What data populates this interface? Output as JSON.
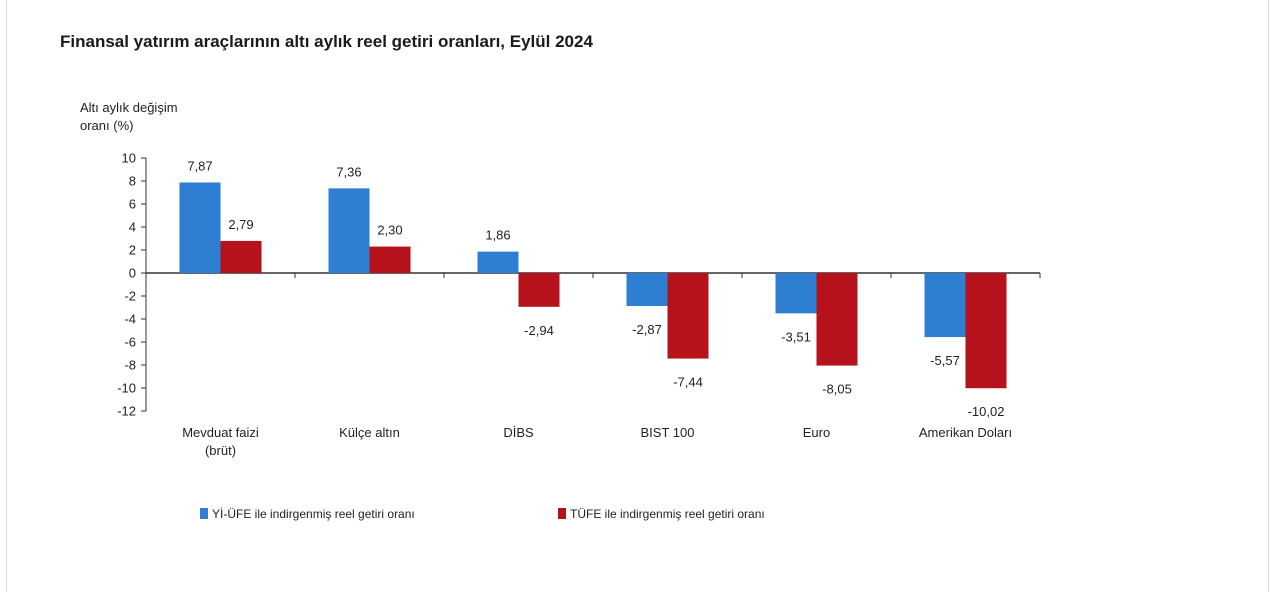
{
  "title": "Finansal yatırım araçlarının altı aylık reel getiri oranları, Eylül 2024",
  "colors": {
    "series_1": "#2e7fd1",
    "series_2": "#b5121b",
    "axis": "#333333"
  },
  "chart_data": {
    "type": "bar",
    "title": "Finansal yatırım araçlarının altı aylık reel getiri oranları, Eylül 2024",
    "ylabel_lines": [
      "Altı aylık değişim",
      "oranı (%)"
    ],
    "xlabel": "",
    "ylim": [
      -12,
      10
    ],
    "yticks": [
      10,
      8,
      6,
      4,
      2,
      0,
      -2,
      -4,
      -6,
      -8,
      -10,
      -12
    ],
    "categories": [
      [
        "Mevduat faizi",
        "(brüt)"
      ],
      [
        "Külçe altın"
      ],
      [
        "DİBS"
      ],
      [
        "BIST 100"
      ],
      [
        "Euro"
      ],
      [
        "Amerikan Doları"
      ]
    ],
    "series": [
      {
        "name": "Yİ-ÜFE ile indirgenmiş reel getiri oranı",
        "color": "#2e7fd1",
        "values": [
          7.87,
          7.36,
          1.86,
          -2.87,
          -3.51,
          -5.57
        ],
        "labels": [
          "7,87",
          "7,36",
          "1,86",
          "-2,87",
          "-3,51",
          "-5,57"
        ]
      },
      {
        "name": "TÜFE ile indirgenmiş reel getiri oranı",
        "color": "#b5121b",
        "values": [
          2.79,
          2.3,
          -2.94,
          -7.44,
          -8.05,
          -10.02
        ],
        "labels": [
          "2,79",
          "2,30",
          "-2,94",
          "-7,44",
          "-8,05",
          "-10,02"
        ]
      }
    ],
    "legend_position": "bottom",
    "grid": false
  }
}
